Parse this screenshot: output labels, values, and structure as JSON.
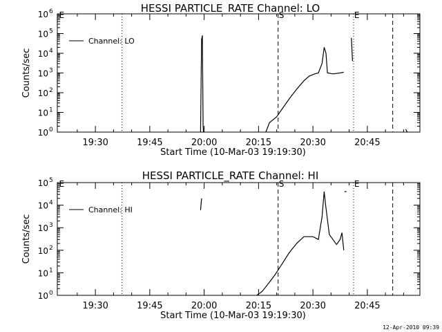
{
  "footer": {
    "timestamp": "12-Apr-2010 09:39"
  },
  "chart_data": [
    {
      "type": "line",
      "title": "HESSI PARTICLE_RATE Channel: LO",
      "xlabel": "Start Time (10-Mar-03 19:19:30)",
      "ylabel": "Counts/sec",
      "x_unit": "minutes since 19:19:30",
      "xlim": [
        0,
        100
      ],
      "ylim": [
        1,
        1000000
      ],
      "yscale": "log",
      "x_ticks": [
        {
          "label": "19:30",
          "value": 10.5
        },
        {
          "label": "19:45",
          "value": 25.5
        },
        {
          "label": "20:00",
          "value": 40.5
        },
        {
          "label": "20:15",
          "value": 55.5
        },
        {
          "label": "20:30",
          "value": 70.5
        },
        {
          "label": "20:45",
          "value": 85.5
        }
      ],
      "y_ticks": [
        {
          "base": "10",
          "exp": "0",
          "value": 1
        },
        {
          "base": "10",
          "exp": "1",
          "value": 10
        },
        {
          "base": "10",
          "exp": "2",
          "value": 100
        },
        {
          "base": "10",
          "exp": "3",
          "value": 1000
        },
        {
          "base": "10",
          "exp": "4",
          "value": 10000
        },
        {
          "base": "10",
          "exp": "5",
          "value": 100000
        },
        {
          "base": "10",
          "exp": "6",
          "value": 1000000
        }
      ],
      "legend": {
        "label": "Channel: LO",
        "position": "top-left"
      },
      "markers": [
        {
          "label": "E",
          "x": 0.3,
          "style": "none"
        },
        {
          "label": "",
          "x": 17.8,
          "style": "dotted"
        },
        {
          "label": "S",
          "x": 60.9,
          "style": "dashed"
        },
        {
          "label": "E",
          "x": 81.7,
          "style": "dotted"
        },
        {
          "label": "",
          "x": 92.5,
          "style": "dashed"
        },
        {
          "label": "",
          "x": 100.0,
          "style": "dotted"
        }
      ],
      "series": [
        {
          "values": [
            [
              39.5,
              1
            ],
            [
              39.8,
              50000
            ],
            [
              40.0,
              80000
            ],
            [
              40.2,
              2
            ],
            [
              40.3,
              1
            ]
          ]
        },
        {
          "values": [
            [
              57.5,
              1
            ],
            [
              58.5,
              3
            ],
            [
              60.5,
              6
            ],
            [
              62.0,
              15
            ],
            [
              64.0,
              50
            ],
            [
              66.0,
              150
            ],
            [
              68.0,
              400
            ],
            [
              69.5,
              700
            ],
            [
              71.0,
              900
            ],
            [
              72.0,
              1000
            ],
            [
              73.0,
              3000
            ],
            [
              73.6,
              20000
            ],
            [
              74.1,
              10000
            ],
            [
              74.5,
              1000
            ],
            [
              76.0,
              900
            ],
            [
              78.0,
              1000
            ],
            [
              79.0,
              1100
            ]
          ]
        },
        {
          "values": [
            [
              81.1,
              60000
            ],
            [
              81.4,
              4000
            ]
          ]
        },
        {
          "values": [
            [
              96.1,
              1.4
            ],
            [
              96.5,
              1
            ]
          ]
        }
      ]
    },
    {
      "type": "line",
      "title": "HESSI PARTICLE_RATE Channel: HI",
      "xlabel": "Start Time (10-Mar-03 19:19:30)",
      "ylabel": "Counts/sec",
      "x_unit": "minutes since 19:19:30",
      "xlim": [
        0,
        100
      ],
      "ylim": [
        1,
        100000
      ],
      "yscale": "log",
      "x_ticks": [
        {
          "label": "19:30",
          "value": 10.5
        },
        {
          "label": "19:45",
          "value": 25.5
        },
        {
          "label": "20:00",
          "value": 40.5
        },
        {
          "label": "20:15",
          "value": 55.5
        },
        {
          "label": "20:30",
          "value": 70.5
        },
        {
          "label": "20:45",
          "value": 85.5
        }
      ],
      "y_ticks": [
        {
          "base": "10",
          "exp": "0",
          "value": 1
        },
        {
          "base": "10",
          "exp": "1",
          "value": 10
        },
        {
          "base": "10",
          "exp": "2",
          "value": 100
        },
        {
          "base": "10",
          "exp": "3",
          "value": 1000
        },
        {
          "base": "10",
          "exp": "4",
          "value": 10000
        },
        {
          "base": "10",
          "exp": "5",
          "value": 100000
        }
      ],
      "legend": {
        "label": "Channel: HI",
        "position": "top-left"
      },
      "markers": [
        {
          "label": "E",
          "x": 0.3,
          "style": "none"
        },
        {
          "label": "",
          "x": 17.8,
          "style": "dotted"
        },
        {
          "label": "S",
          "x": 60.9,
          "style": "dashed"
        },
        {
          "label": "E",
          "x": 81.7,
          "style": "dotted"
        },
        {
          "label": "",
          "x": 92.5,
          "style": "dashed"
        },
        {
          "label": "",
          "x": 100.0,
          "style": "dotted"
        }
      ],
      "series": [
        {
          "values": [
            [
              39.5,
              6000
            ],
            [
              39.8,
              20000
            ]
          ]
        },
        {
          "values": [
            [
              55.0,
              1
            ],
            [
              56.5,
              1.5
            ],
            [
              58.0,
              3
            ],
            [
              60.0,
              8
            ],
            [
              62.0,
              25
            ],
            [
              64.0,
              80
            ],
            [
              66.0,
              200
            ],
            [
              68.0,
              400
            ],
            [
              70.5,
              400
            ],
            [
              72.0,
              300
            ],
            [
              73.0,
              3000
            ],
            [
              73.6,
              40000
            ],
            [
              74.0,
              10000
            ],
            [
              75.0,
              500
            ],
            [
              76.0,
              300
            ],
            [
              77.0,
              180
            ],
            [
              78.0,
              300
            ],
            [
              78.5,
              600
            ],
            [
              79.0,
              100
            ]
          ]
        },
        {
          "values": [
            [
              79.2,
              40000
            ],
            [
              79.8,
              40000
            ]
          ]
        }
      ]
    }
  ]
}
